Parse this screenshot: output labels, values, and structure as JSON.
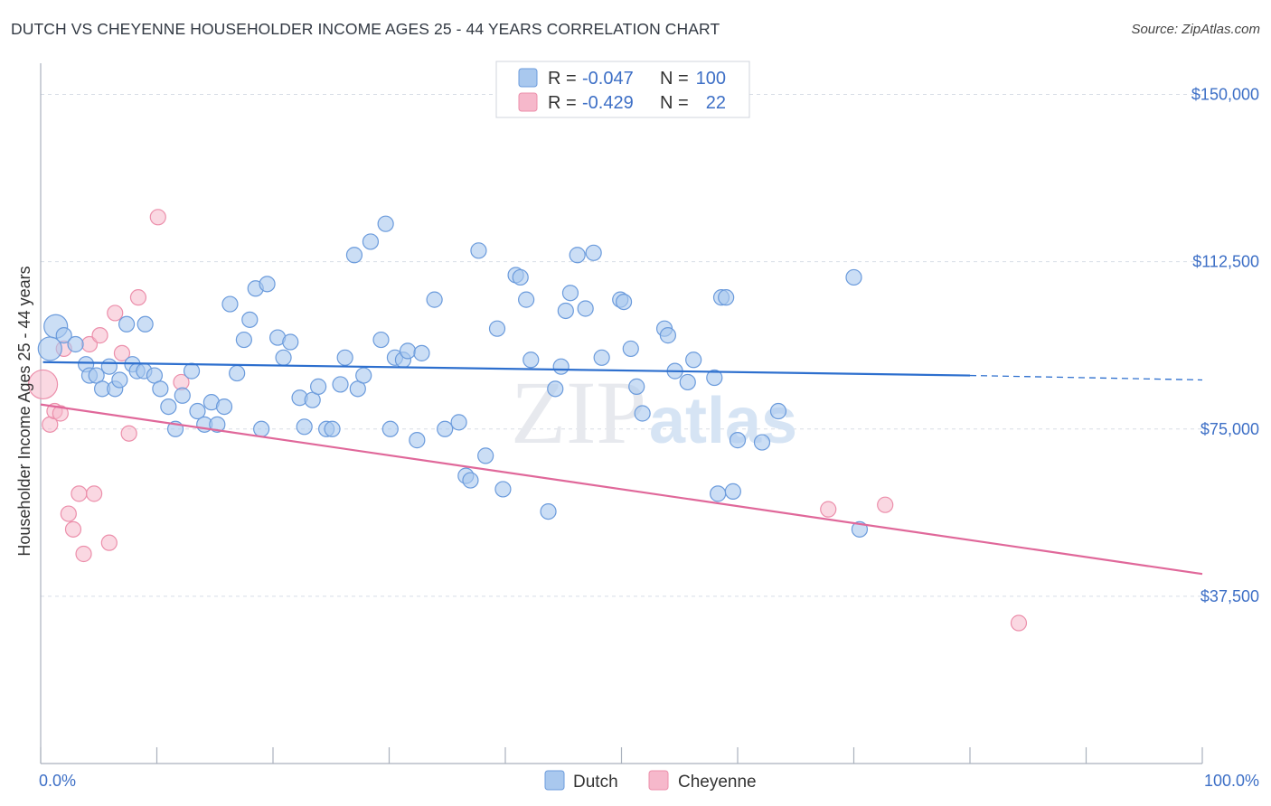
{
  "title": "DUTCH VS CHEYENNE HOUSEHOLDER INCOME AGES 25 - 44 YEARS CORRELATION CHART",
  "source": "Source: ZipAtlas.com",
  "watermark": {
    "zip": "ZIP",
    "atlas": "atlas"
  },
  "colors": {
    "dutch_fill": "#a9c8ee",
    "dutch_stroke": "#6b9bdc",
    "dutch_line": "#2d6fce",
    "cheyenne_fill": "#f6b8cb",
    "cheyenne_stroke": "#ec8fab",
    "cheyenne_line": "#e0689a",
    "axis_text": "#3d6fc6",
    "grid": "#d8dde6"
  },
  "legend": {
    "r_label": "R =",
    "n_label": "N =",
    "dutch": {
      "r": "-0.047",
      "n": "100"
    },
    "cheyenne": {
      "r": "-0.429",
      "n": "22"
    }
  },
  "chart_data": {
    "type": "scatter",
    "title": "DUTCH VS CHEYENNE HOUSEHOLDER INCOME AGES 25 - 44 YEARS CORRELATION CHART",
    "xlabel": "",
    "ylabel": "Householder Income Ages 25 - 44 years",
    "xlim": [
      0,
      100
    ],
    "ylim": [
      0,
      157000
    ],
    "x_tick_labels": [
      "0.0%",
      "100.0%"
    ],
    "y_ticks": [
      37500,
      75000,
      112500,
      150000
    ],
    "y_tick_labels": [
      "$37,500",
      "$75,000",
      "$112,500",
      "$150,000"
    ],
    "grid": true,
    "legend_position": "top-center",
    "series": [
      {
        "name": "Dutch",
        "trend": {
          "x0": 0.2,
          "y0": 90000,
          "x1": 80,
          "y1": 87000,
          "dashed_to_x": 100,
          "dashed_to_y": 86000
        },
        "points": [
          {
            "x": 1.3,
            "y": 98000,
            "big": true
          },
          {
            "x": 0.8,
            "y": 93000,
            "big": true
          },
          {
            "x": 2.0,
            "y": 96000
          },
          {
            "x": 3.0,
            "y": 94000
          },
          {
            "x": 3.9,
            "y": 89500
          },
          {
            "x": 4.2,
            "y": 87000
          },
          {
            "x": 4.8,
            "y": 87000
          },
          {
            "x": 5.3,
            "y": 84000
          },
          {
            "x": 5.9,
            "y": 89000
          },
          {
            "x": 6.4,
            "y": 84000
          },
          {
            "x": 6.8,
            "y": 86000
          },
          {
            "x": 7.4,
            "y": 98500
          },
          {
            "x": 7.9,
            "y": 89500
          },
          {
            "x": 8.3,
            "y": 88000
          },
          {
            "x": 8.9,
            "y": 88000
          },
          {
            "x": 9.0,
            "y": 98500
          },
          {
            "x": 9.8,
            "y": 87000
          },
          {
            "x": 10.3,
            "y": 84000
          },
          {
            "x": 11.0,
            "y": 80000
          },
          {
            "x": 11.6,
            "y": 75000
          },
          {
            "x": 12.2,
            "y": 82500
          },
          {
            "x": 13.0,
            "y": 88000
          },
          {
            "x": 13.5,
            "y": 79000
          },
          {
            "x": 14.1,
            "y": 76000
          },
          {
            "x": 14.7,
            "y": 81000
          },
          {
            "x": 15.2,
            "y": 76000
          },
          {
            "x": 15.8,
            "y": 80000
          },
          {
            "x": 16.3,
            "y": 103000
          },
          {
            "x": 16.9,
            "y": 87500
          },
          {
            "x": 17.5,
            "y": 95000
          },
          {
            "x": 18.0,
            "y": 99500
          },
          {
            "x": 18.5,
            "y": 106500
          },
          {
            "x": 19.0,
            "y": 75000
          },
          {
            "x": 19.5,
            "y": 107500
          },
          {
            "x": 20.4,
            "y": 95500
          },
          {
            "x": 20.9,
            "y": 91000
          },
          {
            "x": 21.5,
            "y": 94500
          },
          {
            "x": 22.3,
            "y": 82000
          },
          {
            "x": 22.7,
            "y": 75500
          },
          {
            "x": 23.4,
            "y": 81500
          },
          {
            "x": 23.9,
            "y": 84500
          },
          {
            "x": 24.6,
            "y": 75000
          },
          {
            "x": 25.1,
            "y": 75000
          },
          {
            "x": 25.8,
            "y": 85000
          },
          {
            "x": 26.2,
            "y": 91000
          },
          {
            "x": 27.0,
            "y": 114000
          },
          {
            "x": 27.3,
            "y": 84000
          },
          {
            "x": 27.8,
            "y": 87000
          },
          {
            "x": 28.4,
            "y": 117000
          },
          {
            "x": 29.3,
            "y": 95000
          },
          {
            "x": 29.7,
            "y": 121000
          },
          {
            "x": 30.1,
            "y": 75000
          },
          {
            "x": 30.5,
            "y": 91000
          },
          {
            "x": 31.2,
            "y": 90500
          },
          {
            "x": 31.6,
            "y": 92500
          },
          {
            "x": 32.4,
            "y": 72500
          },
          {
            "x": 32.8,
            "y": 92000
          },
          {
            "x": 33.9,
            "y": 104000
          },
          {
            "x": 34.8,
            "y": 75000
          },
          {
            "x": 36.0,
            "y": 76500
          },
          {
            "x": 36.6,
            "y": 64500
          },
          {
            "x": 37.0,
            "y": 63500
          },
          {
            "x": 37.7,
            "y": 115000
          },
          {
            "x": 38.3,
            "y": 69000
          },
          {
            "x": 39.3,
            "y": 97500
          },
          {
            "x": 39.8,
            "y": 61500
          },
          {
            "x": 40.9,
            "y": 109500
          },
          {
            "x": 41.3,
            "y": 109000
          },
          {
            "x": 41.8,
            "y": 104000
          },
          {
            "x": 42.2,
            "y": 90500
          },
          {
            "x": 43.7,
            "y": 56500
          },
          {
            "x": 44.3,
            "y": 84000
          },
          {
            "x": 44.8,
            "y": 89000
          },
          {
            "x": 45.2,
            "y": 101500
          },
          {
            "x": 45.6,
            "y": 105500
          },
          {
            "x": 46.2,
            "y": 114000
          },
          {
            "x": 46.9,
            "y": 102000
          },
          {
            "x": 47.6,
            "y": 114500
          },
          {
            "x": 48.3,
            "y": 91000
          },
          {
            "x": 49.9,
            "y": 104000
          },
          {
            "x": 50.2,
            "y": 103500
          },
          {
            "x": 50.8,
            "y": 93000
          },
          {
            "x": 51.3,
            "y": 84500
          },
          {
            "x": 51.8,
            "y": 78500
          },
          {
            "x": 53.7,
            "y": 97500
          },
          {
            "x": 54.0,
            "y": 96000
          },
          {
            "x": 54.6,
            "y": 88000
          },
          {
            "x": 55.7,
            "y": 85500
          },
          {
            "x": 56.2,
            "y": 90500
          },
          {
            "x": 58.0,
            "y": 86500
          },
          {
            "x": 58.3,
            "y": 60500
          },
          {
            "x": 58.6,
            "y": 104500
          },
          {
            "x": 59.0,
            "y": 104500
          },
          {
            "x": 59.6,
            "y": 61000
          },
          {
            "x": 60.0,
            "y": 72500
          },
          {
            "x": 62.1,
            "y": 72000
          },
          {
            "x": 63.5,
            "y": 79000
          },
          {
            "x": 70.0,
            "y": 109000
          },
          {
            "x": 70.5,
            "y": 52500
          }
        ]
      },
      {
        "name": "Cheyenne",
        "trend": {
          "x0": 0,
          "y0": 80500,
          "x1": 100,
          "y1": 42500
        },
        "points": [
          {
            "x": 0.2,
            "y": 85000,
            "big": true
          },
          {
            "x": 0.8,
            "y": 76000
          },
          {
            "x": 1.2,
            "y": 79000
          },
          {
            "x": 1.7,
            "y": 78500
          },
          {
            "x": 2.0,
            "y": 93000
          },
          {
            "x": 2.4,
            "y": 56000
          },
          {
            "x": 2.8,
            "y": 52500
          },
          {
            "x": 3.3,
            "y": 60500
          },
          {
            "x": 3.7,
            "y": 47000
          },
          {
            "x": 4.2,
            "y": 94000
          },
          {
            "x": 4.6,
            "y": 60500
          },
          {
            "x": 5.1,
            "y": 96000
          },
          {
            "x": 5.9,
            "y": 49500
          },
          {
            "x": 6.4,
            "y": 101000
          },
          {
            "x": 7.0,
            "y": 92000
          },
          {
            "x": 7.6,
            "y": 74000
          },
          {
            "x": 8.4,
            "y": 104500
          },
          {
            "x": 10.1,
            "y": 122500
          },
          {
            "x": 12.1,
            "y": 85500
          },
          {
            "x": 67.8,
            "y": 57000
          },
          {
            "x": 72.7,
            "y": 58000
          },
          {
            "x": 84.2,
            "y": 31500
          }
        ]
      }
    ]
  }
}
